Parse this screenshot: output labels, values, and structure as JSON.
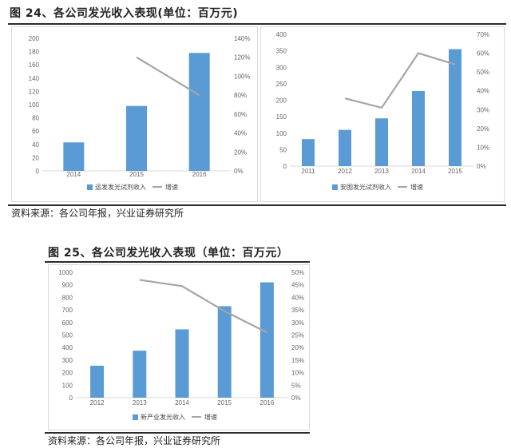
{
  "figure24": {
    "title": "图 24、各公司发光收入表现(单位：百万元)",
    "source": "资料来源：各公司年报，兴业证券研究所"
  },
  "figure25": {
    "title": "图 25、各公司发光收入表现（单位：百万元）",
    "source": "资料来源：各公司年报，兴业证券研究所"
  },
  "colors": {
    "bar": "#5b9bd5",
    "line": "#a5a5a5",
    "axis": "#d9d9d9",
    "rule": "#2b2b2b"
  },
  "chart_data": [
    {
      "id": "chart1",
      "type": "bar",
      "categories": [
        "2014",
        "2015",
        "2016"
      ],
      "series": [
        {
          "name": "运发发光试剂收入",
          "type": "bar",
          "axis": "left",
          "values": [
            43,
            98,
            178
          ]
        },
        {
          "name": "增速",
          "type": "line",
          "axis": "right",
          "values": [
            null,
            1.2,
            0.8
          ]
        }
      ],
      "ylim": [
        0,
        200
      ],
      "yticks": [
        "0",
        "20",
        "40",
        "60",
        "80",
        "100",
        "120",
        "140",
        "160",
        "180",
        "200"
      ],
      "y2lim": [
        0,
        1.4
      ],
      "y2ticks": [
        "0%",
        "20%",
        "40%",
        "60%",
        "80%",
        "100%",
        "120%",
        "140%"
      ],
      "legend": "bottom"
    },
    {
      "id": "chart2",
      "type": "bar",
      "categories": [
        "2011",
        "2012",
        "2013",
        "2014",
        "2015"
      ],
      "series": [
        {
          "name": "安图发光试剂收入",
          "type": "bar",
          "axis": "left",
          "values": [
            82,
            110,
            145,
            228,
            355
          ]
        },
        {
          "name": "增速",
          "type": "line",
          "axis": "right",
          "values": [
            null,
            0.36,
            0.31,
            0.6,
            0.54
          ]
        }
      ],
      "ylim": [
        0,
        400
      ],
      "yticks": [
        "0",
        "50",
        "100",
        "150",
        "200",
        "250",
        "300",
        "350",
        "400"
      ],
      "y2lim": [
        0,
        0.7
      ],
      "y2ticks": [
        "0%",
        "10%",
        "20%",
        "30%",
        "40%",
        "50%",
        "60%",
        "70%"
      ],
      "legend": "bottom"
    },
    {
      "id": "chart3",
      "type": "bar",
      "categories": [
        "2012",
        "2013",
        "2014",
        "2015",
        "2016"
      ],
      "series": [
        {
          "name": "新产业发光收入",
          "type": "bar",
          "axis": "left",
          "values": [
            255,
            375,
            545,
            730,
            920
          ]
        },
        {
          "name": "增速",
          "type": "line",
          "axis": "right",
          "values": [
            null,
            0.47,
            0.445,
            0.345,
            0.26
          ]
        }
      ],
      "ylim": [
        0,
        1000
      ],
      "yticks": [
        "0",
        "100",
        "200",
        "300",
        "400",
        "500",
        "600",
        "700",
        "800",
        "900",
        "1000"
      ],
      "y2lim": [
        0,
        0.5
      ],
      "y2ticks": [
        "0%",
        "5%",
        "10%",
        "15%",
        "20%",
        "25%",
        "30%",
        "35%",
        "40%",
        "45%",
        "50%"
      ],
      "legend": "bottom"
    }
  ]
}
